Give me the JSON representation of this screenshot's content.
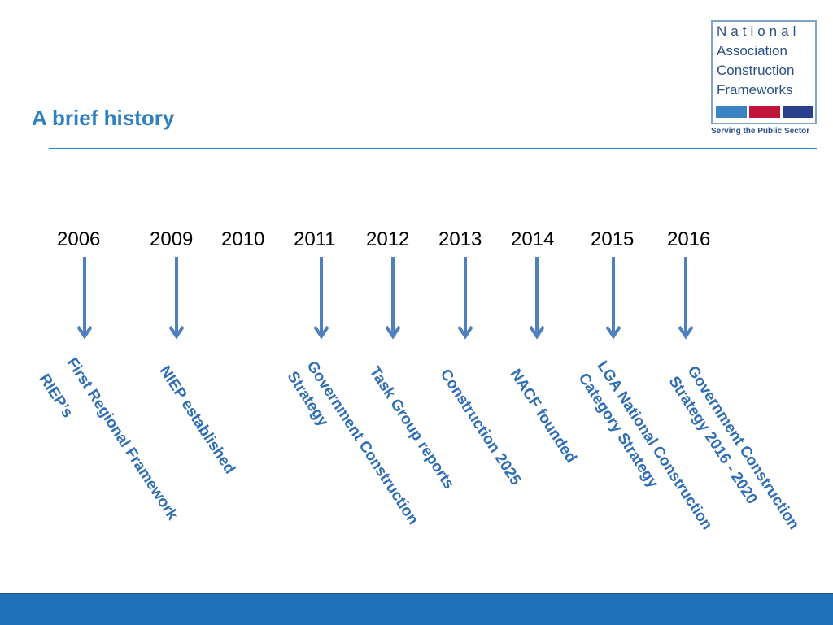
{
  "title": "A brief history",
  "logo": {
    "line1": "National",
    "line2": "Association",
    "line3": "Construction",
    "line4": "Frameworks",
    "tagline": "Serving the Public Sector",
    "bar_colors": [
      "#3a84c4",
      "#c0143c",
      "#2b3f8f"
    ]
  },
  "timeline": {
    "years": [
      "2006",
      "2009",
      "2010",
      "2011",
      "2012",
      "2013",
      "2014",
      "2015",
      "2016"
    ],
    "events": [
      {
        "lines": [
          "First Regional Framework",
          "RIEP’s"
        ]
      },
      {
        "lines": [
          "NIEP established"
        ]
      },
      {
        "lines": [
          "Government Construction",
          "Strategy"
        ]
      },
      {
        "lines": [
          "Task Group reports"
        ]
      },
      {
        "lines": [
          "Construction 2025"
        ]
      },
      {
        "lines": [
          "NACF founded"
        ]
      },
      {
        "lines": [
          "LGA National Construction",
          "Category Strategy"
        ]
      },
      {
        "lines": [
          "Government Construction",
          "Strategy 2016 - 2020"
        ]
      }
    ]
  },
  "colors": {
    "accent": "#2f7fc1",
    "arrow": "#4f7fbe",
    "footer": "#1f71b8"
  }
}
